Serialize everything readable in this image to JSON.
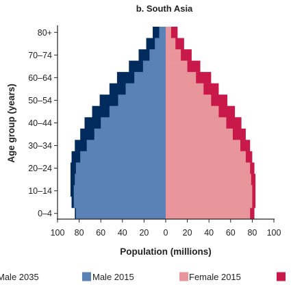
{
  "chart_data": {
    "type": "bar",
    "orientation": "horizontal-pyramid",
    "title": "b.  South Asia",
    "xlabel": "Population (millions)",
    "ylabel": "Age group (years)",
    "xlim": [
      -100,
      100
    ],
    "x_ticks": [
      -100,
      -80,
      -60,
      -40,
      -20,
      0,
      20,
      40,
      60,
      80,
      100
    ],
    "x_tick_labels": [
      "100",
      "80",
      "60",
      "40",
      "20",
      "0",
      "20",
      "40",
      "60",
      "80",
      "100"
    ],
    "categories": [
      "0–4",
      "5–9",
      "10–14",
      "15–19",
      "20–24",
      "25–29",
      "30–34",
      "35–39",
      "40–44",
      "45–49",
      "50–54",
      "55–59",
      "60–64",
      "65–69",
      "70–74",
      "75–79",
      "80+"
    ],
    "y_tick_labels": [
      "0–4",
      "10–14",
      "20–24",
      "30–34",
      "40–44",
      "50–54",
      "60–64",
      "70–74",
      "80+"
    ],
    "series": [
      {
        "name": "Male 2035",
        "side": "left",
        "color": "#002b5c",
        "values": [
          84,
          87,
          88,
          88,
          88,
          87,
          84,
          79,
          75,
          68,
          61,
          52,
          45,
          34,
          25,
          18,
          12
        ]
      },
      {
        "name": "Male 2015",
        "side": "left",
        "color": "#5b82b6",
        "values": [
          83,
          85,
          85,
          84,
          83,
          79,
          73,
          66,
          60,
          52,
          44,
          37,
          29,
          21,
          15,
          10,
          6
        ]
      },
      {
        "name": "Female 2015",
        "side": "right",
        "color": "#e8959b",
        "values": [
          78,
          80,
          80,
          79,
          78,
          74,
          69,
          62,
          56,
          49,
          42,
          35,
          28,
          20,
          14,
          9,
          5
        ]
      },
      {
        "name": "Female 2035",
        "side": "right",
        "color": "#c9184a",
        "values": [
          82,
          83,
          83,
          83,
          82,
          80,
          78,
          74,
          70,
          64,
          57,
          49,
          42,
          32,
          24,
          17,
          11
        ]
      }
    ],
    "legend": {
      "placement": "bottom",
      "entries": [
        "Male 2035",
        "Male 2015",
        "Female 2015",
        "Female 2035"
      ],
      "display": [
        "Male 2035",
        "Male 2015",
        "Female 2015",
        ""
      ]
    },
    "grid": false
  }
}
